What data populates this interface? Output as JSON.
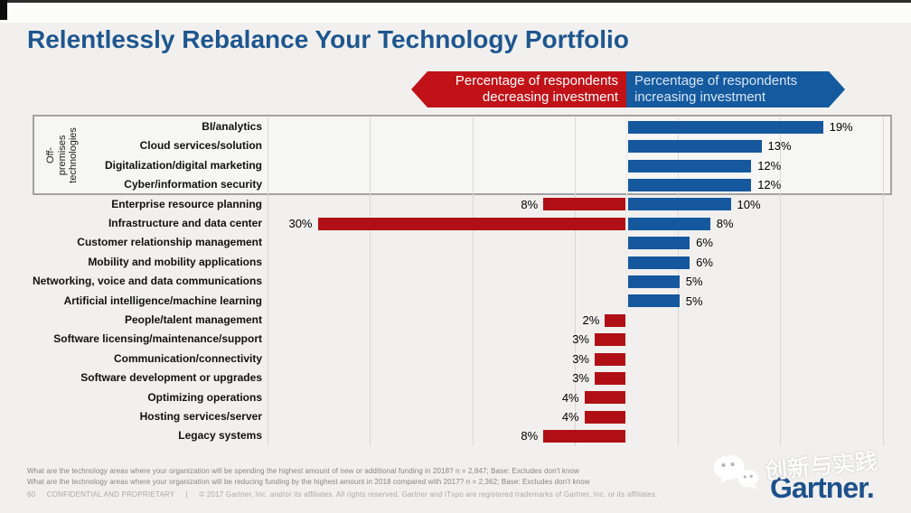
{
  "header": {
    "title": "Relentlessly Rebalance Your Technology Portfolio"
  },
  "legend": {
    "decreasing_line1": "Percentage of respondents",
    "decreasing_line2": "decreasing investment",
    "increasing_line1": "Percentage of respondents",
    "increasing_line2": "increasing investment"
  },
  "chart_data": {
    "type": "bar",
    "orientation": "horizontal-diverging",
    "title": "Relentlessly Rebalance Your Technology Portfolio",
    "value_suffix": "%",
    "xlim": [
      -35,
      27
    ],
    "grid_interval_pct": 10,
    "grid_pcts": [
      -35,
      -25,
      -15,
      -5,
      5,
      15,
      25
    ],
    "legend_position": "top",
    "categories": [
      "BI/analytics",
      "Cloud services/solution",
      "Digitalization/digital marketing",
      "Cyber/information security",
      "Enterprise resource planning",
      "Infrastructure and data center",
      "Customer relationship management",
      "Mobility and mobility applications",
      "Networking, voice and data communications",
      "Artificial intelligence/machine learning",
      "People/talent management",
      "Software licensing/maintenance/support",
      "Communication/connectivity",
      "Software development or upgrades",
      "Optimizing operations",
      "Hosting services/server",
      "Legacy systems"
    ],
    "series": [
      {
        "name": "Percentage of respondents decreasing investment",
        "color": "#b01015",
        "values": [
          0,
          0,
          0,
          0,
          8,
          30,
          0,
          0,
          0,
          0,
          2,
          3,
          3,
          3,
          4,
          4,
          8
        ]
      },
      {
        "name": "Percentage of respondents increasing investment",
        "color": "#15589e",
        "values": [
          19,
          13,
          12,
          12,
          10,
          8,
          6,
          6,
          5,
          5,
          0,
          0,
          0,
          0,
          0,
          0,
          0
        ]
      }
    ],
    "group_annotation": {
      "label": "Off-premises technologies",
      "first_row": 0,
      "last_row": 3
    }
  },
  "footnotes": {
    "q1": "What are the technology areas where your organization will be spending the highest amount of new or additional funding in 2018? n = 2,847; Base: Excludes don't know",
    "q2": "What are the technology areas where your organization will be reducing funding by the highest amount in 2018 compared with 2017? n = 2,362; Base: Excludes don't know"
  },
  "footer": {
    "page_number": "60",
    "confidential": "CONFIDENTIAL AND PROPRIETARY",
    "separator": "|",
    "copyright": "© 2017 Gartner, Inc. and/or its affiliates. All rights reserved. Gartner and ITxpo are registered trademarks of Gartner, Inc. or its affiliates."
  },
  "logo": {
    "text": "Gartner."
  },
  "watermark": {
    "text": "创新与实践",
    "icon": "wechat-icon"
  },
  "colors": {
    "title_blue": "#1e568f",
    "bar_blue": "#15589e",
    "bar_red": "#b01015",
    "arrow_red": "#c11218",
    "arrow_blue": "#155a9e",
    "background": "#f1f0ee",
    "gridline": "#d9d8d4",
    "logo_blue": "#1d518c"
  }
}
